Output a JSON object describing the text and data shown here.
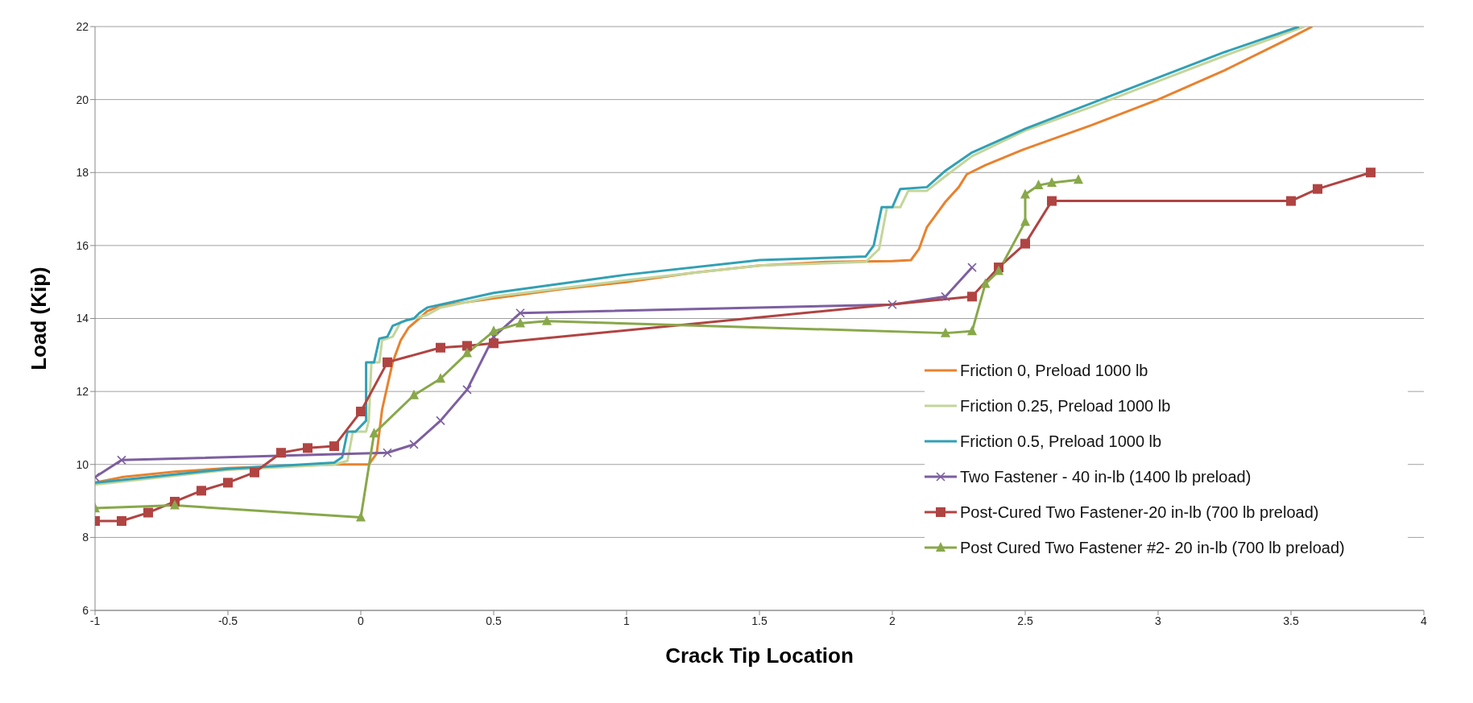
{
  "chart_data": {
    "type": "line",
    "xlabel": "Crack Tip Location",
    "ylabel": "Load (Kip)",
    "xlim": [
      -1,
      4
    ],
    "xticks": [
      -1,
      -0.5,
      0,
      0.5,
      1,
      1.5,
      2,
      2.5,
      3,
      3.5,
      4
    ],
    "ylim": [
      6,
      22
    ],
    "yticks": [
      6,
      8,
      10,
      12,
      14,
      16,
      18,
      20,
      22
    ],
    "grid": "y",
    "legend": "right",
    "series": [
      {
        "name": "Friction 0, Preload 1000 lb",
        "color": "#e8822e",
        "marker": "none",
        "x": [
          -1,
          -0.9,
          -0.7,
          -0.5,
          -0.3,
          -0.1,
          0,
          0.03,
          0.06,
          0.08,
          0.12,
          0.15,
          0.18,
          0.22,
          0.25,
          0.3,
          0.5,
          0.75,
          1,
          1.25,
          1.5,
          1.75,
          2,
          2.07,
          2.1,
          2.13,
          2.2,
          2.25,
          2.28,
          2.35,
          2.5,
          2.75,
          3,
          3.25,
          3.5,
          3.58
        ],
        "values": [
          9.5,
          9.65,
          9.8,
          9.9,
          9.95,
          10,
          10,
          10,
          10.3,
          11.5,
          12.8,
          13.4,
          13.75,
          14,
          14.2,
          14.35,
          14.55,
          14.8,
          15,
          15.25,
          15.45,
          15.55,
          15.57,
          15.6,
          15.9,
          16.5,
          17.2,
          17.6,
          17.95,
          18.2,
          18.65,
          19.3,
          20,
          20.8,
          21.7,
          22
        ]
      },
      {
        "name": "Friction 0.25, Preload 1000 lb",
        "color": "#c3d69b",
        "marker": "none",
        "x": [
          -1,
          -0.5,
          -0.1,
          -0.05,
          -0.03,
          0.02,
          0.03,
          0.04,
          0.07,
          0.08,
          0.12,
          0.15,
          0.2,
          0.25,
          0.3,
          0.5,
          1,
          1.5,
          1.9,
          1.95,
          1.98,
          2.03,
          2.06,
          2.13,
          2.2,
          2.3,
          2.5,
          2.75,
          3,
          3.25,
          3.55
        ],
        "values": [
          9.45,
          9.85,
          10,
          10.1,
          10.9,
          10.9,
          11.2,
          12.8,
          12.8,
          13.4,
          13.5,
          13.9,
          14,
          14.1,
          14.3,
          14.6,
          15.05,
          15.45,
          15.55,
          15.9,
          17.05,
          17.05,
          17.5,
          17.5,
          17.9,
          18.45,
          19.15,
          19.8,
          20.5,
          21.2,
          22
        ]
      },
      {
        "name": "Friction 0.5, Preload 1000 lb",
        "color": "#31a0b5",
        "marker": "none",
        "x": [
          -1,
          -0.5,
          -0.1,
          -0.07,
          -0.05,
          -0.02,
          0.02,
          0.02,
          0.05,
          0.07,
          0.1,
          0.12,
          0.17,
          0.2,
          0.22,
          0.25,
          0.5,
          1,
          1.5,
          1.9,
          1.93,
          1.96,
          2,
          2.03,
          2.13,
          2.2,
          2.3,
          2.5,
          2.75,
          3,
          3.25,
          3.53
        ],
        "values": [
          9.5,
          9.88,
          10.05,
          10.2,
          10.9,
          10.9,
          11.2,
          12.8,
          12.8,
          13.45,
          13.5,
          13.8,
          13.95,
          14,
          14.15,
          14.3,
          14.7,
          15.2,
          15.6,
          15.7,
          16,
          17.05,
          17.05,
          17.55,
          17.6,
          18.05,
          18.55,
          19.2,
          19.9,
          20.6,
          21.3,
          22
        ]
      },
      {
        "name": "Two Fastener - 40 in-lb (1400 lb preload)",
        "color": "#7d5fa0",
        "marker": "cross",
        "x": [
          -1,
          -0.9,
          0.1,
          0.2,
          0.3,
          0.4,
          0.5,
          0.6,
          2,
          2.2,
          2.3
        ],
        "values": [
          9.65,
          10.12,
          10.32,
          10.55,
          11.2,
          12.05,
          13.5,
          14.15,
          14.38,
          14.6,
          15.4
        ]
      },
      {
        "name": "Post-Cured Two Fastener-20 in-lb (700 lb preload)",
        "color": "#b04442",
        "marker": "square",
        "x": [
          -1,
          -0.9,
          -0.8,
          -0.7,
          -0.6,
          -0.5,
          -0.4,
          -0.3,
          -0.2,
          -0.1,
          0,
          0.1,
          0.3,
          0.4,
          0.5,
          2.3,
          2.4,
          2.5,
          2.6,
          3.5,
          3.6,
          3.8
        ],
        "values": [
          8.45,
          8.45,
          8.68,
          8.98,
          9.28,
          9.5,
          9.78,
          10.32,
          10.45,
          10.5,
          11.45,
          12.8,
          13.2,
          13.25,
          13.32,
          14.6,
          15.4,
          16.05,
          17.22,
          17.22,
          17.55,
          18
        ]
      },
      {
        "name": "Post Cured Two Fastener #2- 20 in-lb (700 lb preload)",
        "color": "#88a84a",
        "marker": "triangle",
        "x": [
          -1,
          -0.7,
          0,
          0.05,
          0.2,
          0.3,
          0.4,
          0.5,
          0.6,
          0.7,
          2.2,
          2.3,
          2.35,
          2.4,
          2.5,
          2.5,
          2.55,
          2.6,
          2.7
        ],
        "values": [
          8.8,
          8.88,
          8.55,
          10.85,
          11.9,
          12.35,
          13.05,
          13.65,
          13.87,
          13.93,
          13.6,
          13.65,
          14.95,
          15.3,
          16.65,
          17.4,
          17.65,
          17.72,
          17.8
        ]
      }
    ]
  }
}
